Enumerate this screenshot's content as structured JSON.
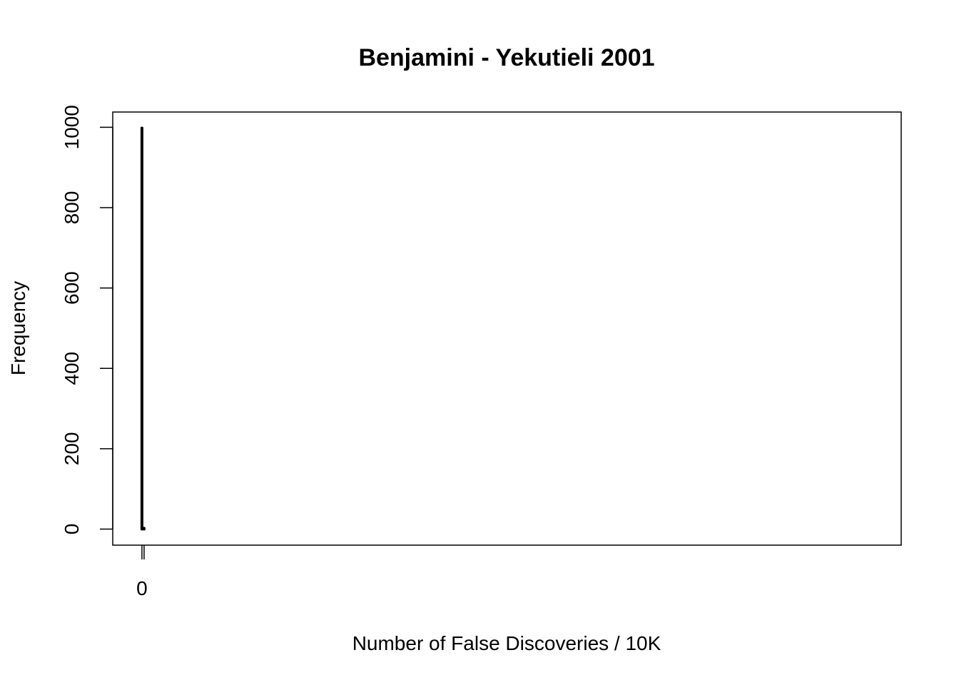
{
  "chart_data": {
    "type": "bar",
    "title": "Benjamini - Yekutieli 2001",
    "xlabel": "Number of False Discoveries / 10K",
    "ylabel": "Frequency",
    "x": [
      0,
      1
    ],
    "values": [
      998,
      2
    ],
    "xlim": [
      0,
      341
    ],
    "ylim": [
      0,
      998
    ],
    "x_ticks": [
      0,
      1
    ],
    "x_tick_labels": [
      "0",
      ""
    ],
    "y_ticks": [
      0,
      200,
      400,
      600,
      800,
      1000
    ],
    "y_tick_labels": [
      "0",
      "200",
      "400",
      "600",
      "800",
      "1000"
    ],
    "grid": false,
    "bar_color": "#000000"
  }
}
